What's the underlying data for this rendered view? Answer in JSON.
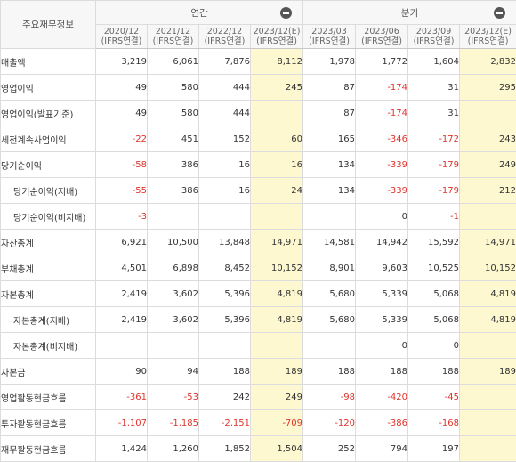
{
  "header": {
    "corner_label": "주요재무정보",
    "annual_label": "연간",
    "quarterly_label": "분기",
    "columns": [
      {
        "period": "2020/12",
        "basis": "(IFRS연결)"
      },
      {
        "period": "2021/12",
        "basis": "(IFRS연결)"
      },
      {
        "period": "2022/12",
        "basis": "(IFRS연결)"
      },
      {
        "period": "2023/12(E)",
        "basis": "(IFRS연결)"
      },
      {
        "period": "2023/03",
        "basis": "(IFRS연결)"
      },
      {
        "period": "2023/06",
        "basis": "(IFRS연결)"
      },
      {
        "period": "2023/09",
        "basis": "(IFRS연결)"
      },
      {
        "period": "2023/12(E)",
        "basis": "(IFRS연결)"
      }
    ]
  },
  "rows": [
    {
      "label": "매출액",
      "values": [
        "3,219",
        "6,061",
        "7,876",
        "8,112",
        "1,978",
        "1,772",
        "1,604",
        "2,832"
      ]
    },
    {
      "label": "영업이익",
      "values": [
        "49",
        "580",
        "444",
        "245",
        "87",
        "-174",
        "31",
        "295"
      ]
    },
    {
      "label": "영업이익(발표기준)",
      "values": [
        "49",
        "580",
        "444",
        "",
        "87",
        "-174",
        "31",
        ""
      ]
    },
    {
      "label": "세전계속사업이익",
      "values": [
        "-22",
        "451",
        "152",
        "60",
        "165",
        "-346",
        "-172",
        "243"
      ]
    },
    {
      "label": "당기순이익",
      "values": [
        "-58",
        "386",
        "16",
        "16",
        "134",
        "-339",
        "-179",
        "249"
      ]
    },
    {
      "label": "당기순이익(지배)",
      "values": [
        "-55",
        "386",
        "16",
        "24",
        "134",
        "-339",
        "-179",
        "212"
      ]
    },
    {
      "label": "당기순이익(비지배)",
      "values": [
        "-3",
        "",
        "",
        "",
        "",
        "0",
        "-1",
        ""
      ]
    },
    {
      "label": "자산총계",
      "values": [
        "6,921",
        "10,500",
        "13,848",
        "14,971",
        "14,581",
        "14,942",
        "15,592",
        "14,971"
      ]
    },
    {
      "label": "부채총계",
      "values": [
        "4,501",
        "6,898",
        "8,452",
        "10,152",
        "8,901",
        "9,603",
        "10,525",
        "10,152"
      ]
    },
    {
      "label": "자본총계",
      "values": [
        "2,419",
        "3,602",
        "5,396",
        "4,819",
        "5,680",
        "5,339",
        "5,068",
        "4,819"
      ]
    },
    {
      "label": "자본총계(지배)",
      "values": [
        "2,419",
        "3,602",
        "5,396",
        "4,819",
        "5,680",
        "5,339",
        "5,068",
        "4,819"
      ]
    },
    {
      "label": "자본총계(비지배)",
      "values": [
        "",
        "",
        "",
        "",
        "",
        "0",
        "0",
        ""
      ]
    },
    {
      "label": "자본금",
      "values": [
        "90",
        "94",
        "188",
        "189",
        "188",
        "188",
        "188",
        "189"
      ]
    },
    {
      "label": "영업활동현금흐름",
      "values": [
        "-361",
        "-53",
        "242",
        "249",
        "-98",
        "-420",
        "-45",
        ""
      ]
    },
    {
      "label": "투자활동현금흐름",
      "values": [
        "-1,107",
        "-1,185",
        "-2,151",
        "-709",
        "-120",
        "-386",
        "-168",
        ""
      ]
    },
    {
      "label": "재무활동현금흐름",
      "values": [
        "1,424",
        "1,260",
        "1,852",
        "1,504",
        "252",
        "794",
        "197",
        ""
      ]
    }
  ],
  "colors": {
    "negative": "#e0322b",
    "estimate_bg": "#fdf8d0",
    "header_bg": "#f7f7f7",
    "border": "#dcdcdc"
  }
}
